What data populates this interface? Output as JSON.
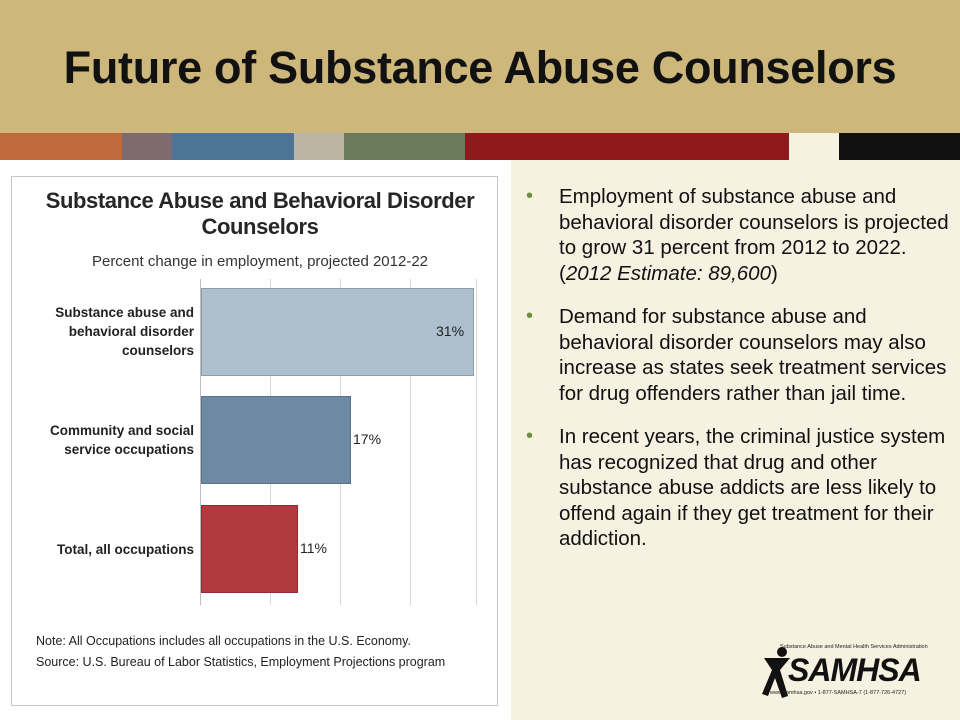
{
  "slide": {
    "title": "Future of Substance Abuse Counselors",
    "stripe_colors": [
      "#c0693a",
      "#7d6b70",
      "#4e7595",
      "#bdb5a4",
      "#6a7a5a",
      "#8e1a1c",
      "#f6f1e1",
      "#111111"
    ]
  },
  "chart_data": {
    "type": "bar",
    "orientation": "horizontal",
    "title": "Substance Abuse and Behavioral Disorder Counselors",
    "subtitle": "Percent change in employment, projected 2012-22",
    "categories": [
      "Substance abuse and behavioral disorder counselors",
      "Community and social service occupations",
      "Total, all occupations"
    ],
    "values": [
      31,
      17,
      11
    ],
    "value_labels": [
      "31%",
      "17%",
      "11%"
    ],
    "bar_colors": [
      "#aebfcd",
      "#6c8aa4",
      "#b03a3e"
    ],
    "xlim": [
      0,
      31
    ],
    "grid": true,
    "notes": [
      "Note: All Occupations includes all occupations in the U.S. Economy.",
      "Source: U.S. Bureau of Labor Statistics, Employment Projections program"
    ]
  },
  "bullets": [
    {
      "text": "Employment of substance abuse and behavioral disorder counselors is projected to grow 31 percent from 2012 to 2022. (",
      "italic": "2012 Estimate: 89,600",
      "after": ")"
    },
    {
      "text": "Demand for substance abuse and behavioral disorder counselors may also increase as states seek treatment services for drug offenders rather than jail time.",
      "italic": "",
      "after": ""
    },
    {
      "text": "In recent years, the criminal justice system has recognized that drug and other substance abuse addicts are less likely to offend again if they get treatment for their addiction.",
      "italic": "",
      "after": ""
    }
  ],
  "logo": {
    "name": "SAMHSA",
    "top_text": "Substance Abuse and Mental Health Services Administration",
    "bottom_text": "www.samhsa.gov • 1-877-SAMHSA-7 (1-877-726-4727)"
  }
}
